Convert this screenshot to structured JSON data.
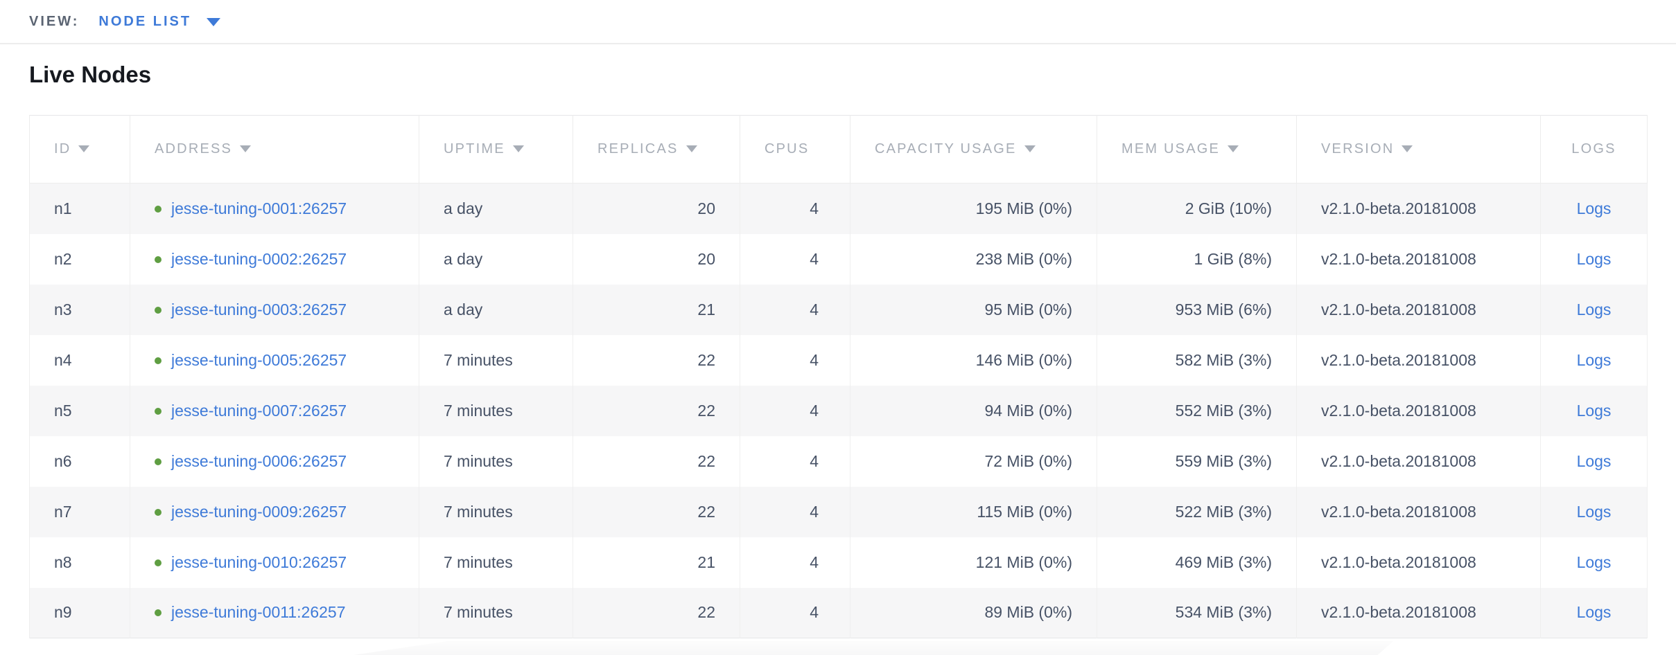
{
  "colors": {
    "accent_blue": "#3e7ad8",
    "status_green": "#5f9e42",
    "header_gray": "#a7adb6",
    "cell_text": "#475266",
    "stripe_bg": "#f6f6f7",
    "border": "#ececec"
  },
  "view_bar": {
    "label": "VIEW:",
    "selected_view": "NODE LIST"
  },
  "page": {
    "title": "Live Nodes"
  },
  "table": {
    "columns": [
      {
        "key": "id",
        "label": "ID",
        "sortable": true,
        "align": "left"
      },
      {
        "key": "address",
        "label": "ADDRESS",
        "sortable": true,
        "align": "left"
      },
      {
        "key": "uptime",
        "label": "UPTIME",
        "sortable": true,
        "align": "left"
      },
      {
        "key": "replicas",
        "label": "REPLICAS",
        "sortable": true,
        "align": "right"
      },
      {
        "key": "cpus",
        "label": "CPUS",
        "sortable": false,
        "align": "right"
      },
      {
        "key": "capacity",
        "label": "CAPACITY USAGE",
        "sortable": true,
        "align": "right"
      },
      {
        "key": "mem",
        "label": "MEM USAGE",
        "sortable": true,
        "align": "right"
      },
      {
        "key": "version",
        "label": "VERSION",
        "sortable": true,
        "align": "left"
      },
      {
        "key": "logs",
        "label": "LOGS",
        "sortable": false,
        "align": "center"
      }
    ],
    "rows": [
      {
        "id": "n1",
        "address": "jesse-tuning-0001:26257",
        "status": "healthy",
        "uptime": "a day",
        "replicas": "20",
        "cpus": "4",
        "capacity": "195 MiB (0%)",
        "mem": "2 GiB (10%)",
        "version": "v2.1.0-beta.20181008",
        "logs": "Logs"
      },
      {
        "id": "n2",
        "address": "jesse-tuning-0002:26257",
        "status": "healthy",
        "uptime": "a day",
        "replicas": "20",
        "cpus": "4",
        "capacity": "238 MiB (0%)",
        "mem": "1 GiB (8%)",
        "version": "v2.1.0-beta.20181008",
        "logs": "Logs"
      },
      {
        "id": "n3",
        "address": "jesse-tuning-0003:26257",
        "status": "healthy",
        "uptime": "a day",
        "replicas": "21",
        "cpus": "4",
        "capacity": "95 MiB (0%)",
        "mem": "953 MiB (6%)",
        "version": "v2.1.0-beta.20181008",
        "logs": "Logs"
      },
      {
        "id": "n4",
        "address": "jesse-tuning-0005:26257",
        "status": "healthy",
        "uptime": "7 minutes",
        "replicas": "22",
        "cpus": "4",
        "capacity": "146 MiB (0%)",
        "mem": "582 MiB (3%)",
        "version": "v2.1.0-beta.20181008",
        "logs": "Logs"
      },
      {
        "id": "n5",
        "address": "jesse-tuning-0007:26257",
        "status": "healthy",
        "uptime": "7 minutes",
        "replicas": "22",
        "cpus": "4",
        "capacity": "94 MiB (0%)",
        "mem": "552 MiB (3%)",
        "version": "v2.1.0-beta.20181008",
        "logs": "Logs"
      },
      {
        "id": "n6",
        "address": "jesse-tuning-0006:26257",
        "status": "healthy",
        "uptime": "7 minutes",
        "replicas": "22",
        "cpus": "4",
        "capacity": "72 MiB (0%)",
        "mem": "559 MiB (3%)",
        "version": "v2.1.0-beta.20181008",
        "logs": "Logs"
      },
      {
        "id": "n7",
        "address": "jesse-tuning-0009:26257",
        "status": "healthy",
        "uptime": "7 minutes",
        "replicas": "22",
        "cpus": "4",
        "capacity": "115 MiB (0%)",
        "mem": "522 MiB (3%)",
        "version": "v2.1.0-beta.20181008",
        "logs": "Logs"
      },
      {
        "id": "n8",
        "address": "jesse-tuning-0010:26257",
        "status": "healthy",
        "uptime": "7 minutes",
        "replicas": "21",
        "cpus": "4",
        "capacity": "121 MiB (0%)",
        "mem": "469 MiB (3%)",
        "version": "v2.1.0-beta.20181008",
        "logs": "Logs"
      },
      {
        "id": "n9",
        "address": "jesse-tuning-0011:26257",
        "status": "healthy",
        "uptime": "7 minutes",
        "replicas": "22",
        "cpus": "4",
        "capacity": "89 MiB (0%)",
        "mem": "534 MiB (3%)",
        "version": "v2.1.0-beta.20181008",
        "logs": "Logs"
      }
    ]
  }
}
